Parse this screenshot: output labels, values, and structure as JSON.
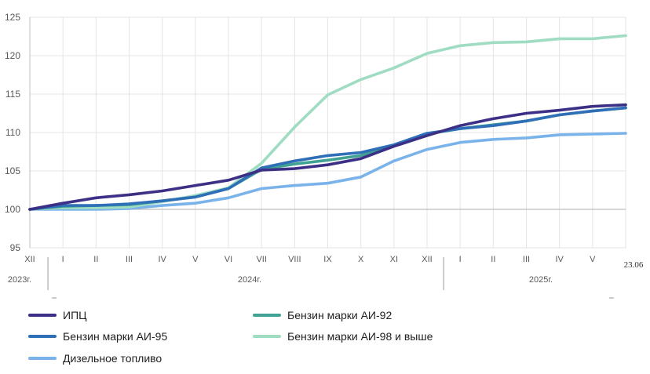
{
  "chart_data": {
    "type": "line",
    "title": "",
    "xlabel": "",
    "ylabel": "",
    "ylim": [
      95,
      125
    ],
    "yticks": [
      95,
      100,
      105,
      110,
      115,
      120,
      125
    ],
    "grid": true,
    "legend_placement": "bottom",
    "categories": [
      "XII",
      "I",
      "II",
      "III",
      "IV",
      "V",
      "VI",
      "VII",
      "VIII",
      "IX",
      "X",
      "XI",
      "XII",
      "I",
      "II",
      "III",
      "IV",
      "V",
      "23.06"
    ],
    "years": [
      {
        "label": "2023г.",
        "from": 0,
        "to": 0
      },
      {
        "label": "2024г.",
        "from": 1,
        "to": 12
      },
      {
        "label": "2025г.",
        "from": 13,
        "to": 18
      }
    ],
    "series": [
      {
        "name": "ИПЦ",
        "color": "#3b2f86",
        "values": [
          100.0,
          100.8,
          101.5,
          101.9,
          102.4,
          103.1,
          103.8,
          105.1,
          105.3,
          105.8,
          106.6,
          108.2,
          109.6,
          110.9,
          111.8,
          112.5,
          112.9,
          113.4,
          113.6
        ]
      },
      {
        "name": "Бензин марки АИ-92",
        "color": "#3fa293",
        "values": [
          100.0,
          100.4,
          100.5,
          100.6,
          101.1,
          101.6,
          102.7,
          105.2,
          105.9,
          106.4,
          107.0,
          108.3,
          109.8,
          110.5,
          111.0,
          111.5,
          112.3,
          112.8,
          113.2
        ]
      },
      {
        "name": "Бензин марки АИ-95",
        "color": "#2f6fb8",
        "values": [
          100.0,
          100.5,
          100.5,
          100.7,
          101.1,
          101.6,
          102.7,
          105.4,
          106.3,
          107.0,
          107.4,
          108.4,
          109.9,
          110.5,
          110.9,
          111.5,
          112.3,
          112.8,
          113.2
        ]
      },
      {
        "name": "Бензин марки АИ-98 и выше",
        "color": "#9fdcc2",
        "values": [
          100.0,
          100.2,
          100.2,
          100.3,
          101.0,
          101.8,
          102.8,
          106.0,
          110.7,
          114.9,
          116.9,
          118.4,
          120.3,
          121.3,
          121.7,
          121.8,
          122.2,
          122.2,
          122.6
        ]
      },
      {
        "name": "Дизельное топливо",
        "color": "#7ab3ea",
        "values": [
          100.0,
          100.0,
          100.0,
          100.1,
          100.5,
          100.8,
          101.5,
          102.7,
          103.1,
          103.4,
          104.2,
          106.3,
          107.8,
          108.7,
          109.1,
          109.3,
          109.7,
          109.8,
          109.9
        ]
      }
    ]
  }
}
